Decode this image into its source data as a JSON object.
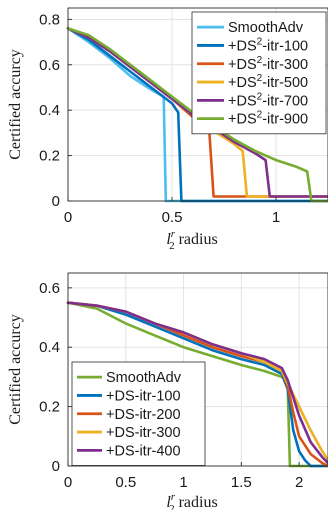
{
  "chart_data": [
    {
      "type": "line",
      "xlabel_main": "l",
      "xlabel_sup": "r",
      "xlabel_sub": "2",
      "xlabel_rest": " radius",
      "ylabel": "Certified accurcy",
      "xlim": [
        0,
        1.25
      ],
      "ylim": [
        0,
        0.85
      ],
      "xticks": [
        0,
        0.5,
        1
      ],
      "xtick_labels": [
        "0",
        "0.5",
        "1"
      ],
      "yticks": [
        0,
        0.2,
        0.4,
        0.6,
        0.8
      ],
      "ytick_labels": [
        "0",
        "0.2",
        "0.4",
        "0.6",
        "0.8"
      ],
      "grid": true,
      "legend_position": "top-right",
      "series": [
        {
          "name_main": "SmoothAdv",
          "name_sup": "",
          "name_rest": "",
          "color": "#4DBEEE",
          "x": [
            0,
            0.1,
            0.2,
            0.3,
            0.4,
            0.46,
            0.47,
            1.25
          ],
          "y": [
            0.76,
            0.7,
            0.63,
            0.55,
            0.49,
            0.46,
            0,
            0
          ]
        },
        {
          "name_main": "+DS",
          "name_sup": "2",
          "name_rest": "-itr-100",
          "color": "#0072BD",
          "x": [
            0,
            0.1,
            0.2,
            0.3,
            0.4,
            0.5,
            0.53,
            0.545,
            1.25
          ],
          "y": [
            0.76,
            0.71,
            0.64,
            0.57,
            0.5,
            0.43,
            0.39,
            0,
            0
          ]
        },
        {
          "name_main": "+DS",
          "name_sup": "2",
          "name_rest": "-itr-300",
          "color": "#D95319",
          "x": [
            0,
            0.1,
            0.2,
            0.3,
            0.4,
            0.5,
            0.6,
            0.68,
            0.7,
            1.25
          ],
          "y": [
            0.76,
            0.72,
            0.66,
            0.59,
            0.52,
            0.45,
            0.37,
            0.3,
            0.02,
            0.02
          ]
        },
        {
          "name_main": "+DS",
          "name_sup": "2",
          "name_rest": "-itr-500",
          "color": "#EDB120",
          "x": [
            0,
            0.1,
            0.2,
            0.3,
            0.4,
            0.5,
            0.6,
            0.7,
            0.8,
            0.84,
            0.86,
            1.25
          ],
          "y": [
            0.76,
            0.72,
            0.66,
            0.59,
            0.52,
            0.45,
            0.38,
            0.31,
            0.25,
            0.22,
            0.02,
            0.02
          ]
        },
        {
          "name_main": "+DS",
          "name_sup": "2",
          "name_rest": "-itr-700",
          "color": "#7E2F8E",
          "x": [
            0,
            0.1,
            0.2,
            0.3,
            0.4,
            0.5,
            0.6,
            0.7,
            0.8,
            0.9,
            0.95,
            0.97,
            1.25
          ],
          "y": [
            0.76,
            0.72,
            0.66,
            0.59,
            0.52,
            0.45,
            0.38,
            0.32,
            0.26,
            0.21,
            0.18,
            0.02,
            0.02
          ]
        },
        {
          "name_main": "+DS",
          "name_sup": "2",
          "name_rest": "-itr-900",
          "color": "#77AC30",
          "x": [
            0,
            0.1,
            0.2,
            0.3,
            0.4,
            0.5,
            0.6,
            0.7,
            0.8,
            0.9,
            1.0,
            1.1,
            1.15,
            1.17,
            1.25
          ],
          "y": [
            0.76,
            0.73,
            0.67,
            0.6,
            0.53,
            0.46,
            0.39,
            0.33,
            0.27,
            0.22,
            0.18,
            0.15,
            0.13,
            0,
            0
          ]
        }
      ]
    },
    {
      "type": "line",
      "xlabel_main": "l",
      "xlabel_sup": "r",
      "xlabel_sub": "2",
      "xlabel_rest": " radius",
      "ylabel": "Certified accurcy",
      "xlim": [
        0,
        2.25
      ],
      "ylim": [
        0,
        0.65
      ],
      "xticks": [
        0,
        0.5,
        1,
        1.5,
        2
      ],
      "xtick_labels": [
        "0",
        "0.5",
        "1",
        "1.5",
        "2"
      ],
      "yticks": [
        0,
        0.2,
        0.4,
        0.6
      ],
      "ytick_labels": [
        "0",
        "0.2",
        "0.4",
        "0.6"
      ],
      "grid": true,
      "legend_position": "bottom-left",
      "series": [
        {
          "name_main": "SmoothAdv",
          "name_sup": "",
          "name_rest": "",
          "color": "#77AC30",
          "x": [
            0,
            0.25,
            0.5,
            0.75,
            1.0,
            1.25,
            1.5,
            1.7,
            1.85,
            1.9,
            1.92,
            2.25
          ],
          "y": [
            0.55,
            0.53,
            0.48,
            0.44,
            0.4,
            0.37,
            0.34,
            0.32,
            0.3,
            0.28,
            0,
            0
          ]
        },
        {
          "name_main": "+DS",
          "name_sup": "",
          "name_rest": "-itr-100",
          "color": "#0072BD",
          "x": [
            0,
            0.25,
            0.5,
            0.75,
            1.0,
            1.25,
            1.5,
            1.7,
            1.85,
            1.9,
            1.95,
            2.0,
            2.05,
            2.1,
            2.25
          ],
          "y": [
            0.55,
            0.54,
            0.51,
            0.47,
            0.43,
            0.39,
            0.36,
            0.34,
            0.31,
            0.26,
            0.12,
            0.05,
            0.02,
            0,
            0
          ]
        },
        {
          "name_main": "+DS",
          "name_sup": "",
          "name_rest": "-itr-200",
          "color": "#D95319",
          "x": [
            0,
            0.25,
            0.5,
            0.75,
            1.0,
            1.25,
            1.5,
            1.7,
            1.85,
            1.9,
            1.95,
            2.0,
            2.1,
            2.2,
            2.25
          ],
          "y": [
            0.55,
            0.54,
            0.52,
            0.48,
            0.44,
            0.4,
            0.37,
            0.35,
            0.32,
            0.27,
            0.18,
            0.1,
            0.04,
            0.01,
            0
          ]
        },
        {
          "name_main": "+DS",
          "name_sup": "",
          "name_rest": "-itr-300",
          "color": "#EDB120",
          "x": [
            0,
            0.25,
            0.5,
            0.75,
            1.0,
            1.25,
            1.5,
            1.7,
            1.85,
            1.9,
            2.0,
            2.1,
            2.2,
            2.25
          ],
          "y": [
            0.55,
            0.54,
            0.52,
            0.48,
            0.45,
            0.41,
            0.38,
            0.35,
            0.32,
            0.28,
            0.2,
            0.12,
            0.05,
            0.02
          ]
        },
        {
          "name_main": "+DS",
          "name_sup": "",
          "name_rest": "-itr-400",
          "color": "#7E2F8E",
          "x": [
            0,
            0.25,
            0.5,
            0.75,
            1.0,
            1.25,
            1.5,
            1.7,
            1.85,
            1.9,
            2.0,
            2.1,
            2.2,
            2.25
          ],
          "y": [
            0.55,
            0.54,
            0.52,
            0.48,
            0.45,
            0.41,
            0.38,
            0.36,
            0.33,
            0.29,
            0.17,
            0.08,
            0.03,
            0.01
          ]
        }
      ]
    }
  ]
}
